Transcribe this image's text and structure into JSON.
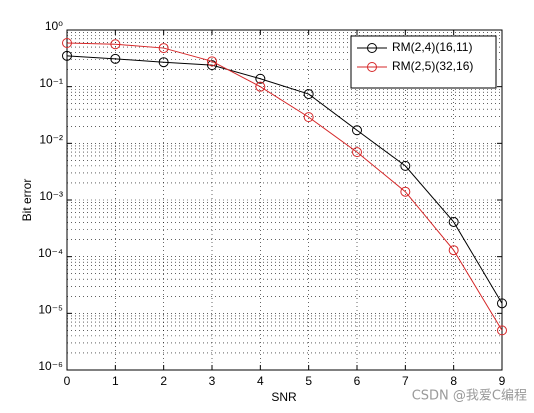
{
  "chart_data": {
    "type": "line",
    "x_label": "SNR",
    "y_label": "Bit error",
    "x": [
      0,
      1,
      2,
      3,
      4,
      5,
      6,
      7,
      8,
      9
    ],
    "series": [
      {
        "name": "RM(2,4)(16,11)",
        "color": "#000000",
        "values": [
          0.35,
          0.31,
          0.27,
          0.24,
          0.138,
          0.074,
          0.017,
          0.004,
          0.00041,
          1.5e-05
        ]
      },
      {
        "name": "RM(2,5)(32,16)",
        "color": "#d62728",
        "values": [
          0.59,
          0.56,
          0.48,
          0.28,
          0.1,
          0.029,
          0.007,
          0.0014,
          0.00013,
          5e-06
        ]
      }
    ],
    "xlim": [
      0,
      9
    ],
    "xticks": [
      0,
      1,
      2,
      3,
      4,
      5,
      6,
      7,
      8,
      9
    ],
    "ylim": [
      1e-06,
      1
    ],
    "yticks": [
      {
        "value": 1e-06,
        "label": "10⁻⁶"
      },
      {
        "value": 1e-05,
        "label": "10⁻⁵"
      },
      {
        "value": 0.0001,
        "label": "10⁻⁴"
      },
      {
        "value": 0.001,
        "label": "10⁻³"
      },
      {
        "value": 0.01,
        "label": "10⁻²"
      },
      {
        "value": 0.1,
        "label": "10⁻¹"
      },
      {
        "value": 1,
        "label": "10⁰"
      }
    ],
    "y_log": true,
    "grid": true,
    "minor_grid": true,
    "legend": "northeast",
    "marker": "circle",
    "watermark": "CSDN @我爱C编程"
  }
}
